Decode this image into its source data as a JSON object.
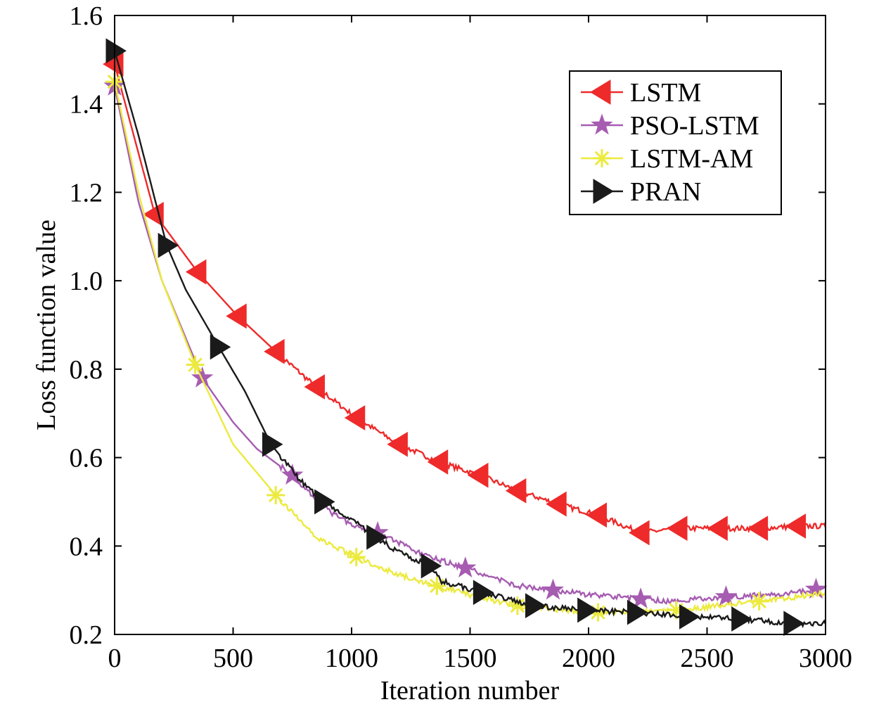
{
  "chart_data": {
    "type": "line",
    "xlabel": "Iteration number",
    "ylabel": "Loss function value",
    "xlim": [
      0,
      3000
    ],
    "ylim": [
      0.2,
      1.6
    ],
    "xticks": [
      "0",
      "500",
      "1000",
      "1500",
      "2000",
      "2500",
      "3000"
    ],
    "yticks": [
      "0.2",
      "0.4",
      "0.6",
      "0.8",
      "1.0",
      "1.2",
      "1.4",
      "1.6"
    ],
    "grid": false,
    "legend": "top-right",
    "series": [
      {
        "name": "LSTM",
        "color": "#ee2a2a",
        "marker": "triangle-left",
        "x": [
          0,
          170,
          350,
          520,
          680,
          850,
          1020,
          1200,
          1370,
          1540,
          1700,
          1870,
          2040,
          2220,
          2380,
          2550,
          2720,
          2880,
          3000
        ],
        "y": [
          1.49,
          1.15,
          1.02,
          0.92,
          0.84,
          0.76,
          0.69,
          0.63,
          0.59,
          0.56,
          0.525,
          0.495,
          0.47,
          0.43,
          0.44,
          0.44,
          0.44,
          0.445,
          0.445
        ],
        "marker_x": [
          0,
          170,
          350,
          520,
          680,
          850,
          1020,
          1200,
          1370,
          1540,
          1700,
          1870,
          2040,
          2220,
          2380,
          2550,
          2720,
          2880
        ]
      },
      {
        "name": "PSO-LSTM",
        "color": "#a65cb1",
        "marker": "star",
        "x": [
          0,
          100,
          200,
          370,
          500,
          600,
          750,
          900,
          1000,
          1110,
          1300,
          1480,
          1700,
          1850,
          2000,
          2220,
          2350,
          2580,
          2800,
          3000
        ],
        "y": [
          1.44,
          1.18,
          1.0,
          0.78,
          0.68,
          0.62,
          0.56,
          0.48,
          0.45,
          0.43,
          0.38,
          0.35,
          0.31,
          0.3,
          0.29,
          0.28,
          0.275,
          0.285,
          0.29,
          0.305
        ],
        "marker_x": [
          0,
          370,
          750,
          1110,
          1480,
          1850,
          2220,
          2580,
          2960
        ]
      },
      {
        "name": "LSTM-AM",
        "color": "#ecea3e",
        "marker": "asterisk",
        "x": [
          0,
          100,
          200,
          340,
          500,
          680,
          850,
          1020,
          1200,
          1360,
          1530,
          1700,
          1870,
          2040,
          2200,
          2370,
          2550,
          2720,
          2880,
          3000
        ],
        "y": [
          1.45,
          1.2,
          1.0,
          0.81,
          0.63,
          0.515,
          0.42,
          0.375,
          0.335,
          0.31,
          0.285,
          0.265,
          0.255,
          0.25,
          0.25,
          0.255,
          0.265,
          0.275,
          0.285,
          0.295
        ],
        "marker_x": [
          0,
          340,
          680,
          1020,
          1360,
          1700,
          2040,
          2370,
          2720
        ]
      },
      {
        "name": "PRAN",
        "color": "#1a1a1a",
        "marker": "triangle-right",
        "x": [
          0,
          100,
          220,
          300,
          440,
          550,
          660,
          780,
          880,
          1000,
          1100,
          1220,
          1330,
          1380,
          1550,
          1770,
          1990,
          2200,
          2420,
          2640,
          2860,
          3000
        ],
        "y": [
          1.52,
          1.33,
          1.08,
          0.98,
          0.85,
          0.75,
          0.63,
          0.55,
          0.5,
          0.46,
          0.42,
          0.38,
          0.355,
          0.32,
          0.295,
          0.265,
          0.255,
          0.25,
          0.24,
          0.235,
          0.225,
          0.225
        ],
        "marker_x": [
          0,
          220,
          440,
          660,
          880,
          1100,
          1330,
          1550,
          1770,
          1990,
          2200,
          2420,
          2640,
          2860
        ]
      }
    ]
  }
}
